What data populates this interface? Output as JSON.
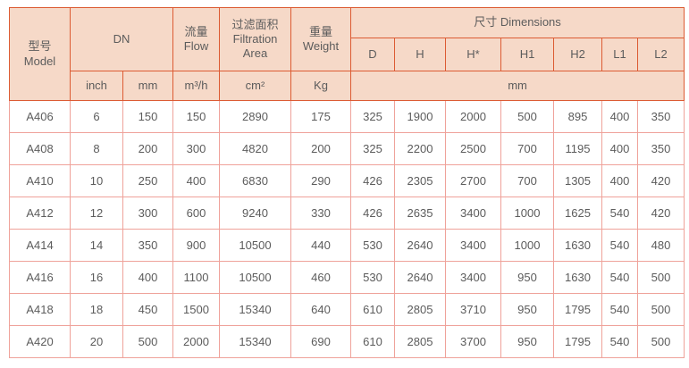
{
  "table": {
    "header": {
      "model": {
        "zh": "型号",
        "en": "Model"
      },
      "dn": "DN",
      "flow": {
        "zh": "流量",
        "en": "Flow"
      },
      "filtration": {
        "zh": "过滤面积",
        "en1": "Filtration",
        "en2": "Area"
      },
      "weight": {
        "zh": "重量",
        "en": "Weight"
      },
      "dimensions": "尺寸 Dimensions",
      "dim_cols": [
        "D",
        "H",
        "H*",
        "H1",
        "H2",
        "L1",
        "L2"
      ],
      "units": {
        "inch": "inch",
        "mm": "mm",
        "flow": "m³/h",
        "area": "cm²",
        "weight": "Kg",
        "dim": "mm"
      }
    },
    "rows": [
      [
        "A406",
        "6",
        "150",
        "150",
        "2890",
        "175",
        "325",
        "1900",
        "2000",
        "500",
        "895",
        "400",
        "350"
      ],
      [
        "A408",
        "8",
        "200",
        "300",
        "4820",
        "200",
        "325",
        "2200",
        "2500",
        "700",
        "1195",
        "400",
        "350"
      ],
      [
        "A410",
        "10",
        "250",
        "400",
        "6830",
        "290",
        "426",
        "2305",
        "2700",
        "700",
        "1305",
        "400",
        "420"
      ],
      [
        "A412",
        "12",
        "300",
        "600",
        "9240",
        "330",
        "426",
        "2635",
        "3400",
        "1000",
        "1625",
        "540",
        "420"
      ],
      [
        "A414",
        "14",
        "350",
        "900",
        "10500",
        "440",
        "530",
        "2640",
        "3400",
        "1000",
        "1630",
        "540",
        "480"
      ],
      [
        "A416",
        "16",
        "400",
        "1100",
        "10500",
        "460",
        "530",
        "2640",
        "3400",
        "950",
        "1630",
        "540",
        "500"
      ],
      [
        "A418",
        "18",
        "450",
        "1500",
        "15340",
        "640",
        "610",
        "2805",
        "3710",
        "950",
        "1795",
        "540",
        "500"
      ],
      [
        "A420",
        "20",
        "500",
        "2000",
        "15340",
        "690",
        "610",
        "2805",
        "3700",
        "950",
        "1795",
        "540",
        "500"
      ]
    ],
    "colors": {
      "header_bg": "#f6d9c8",
      "header_border": "#dc5b33",
      "body_border": "#efa29a",
      "text": "#5c5c5c"
    }
  }
}
